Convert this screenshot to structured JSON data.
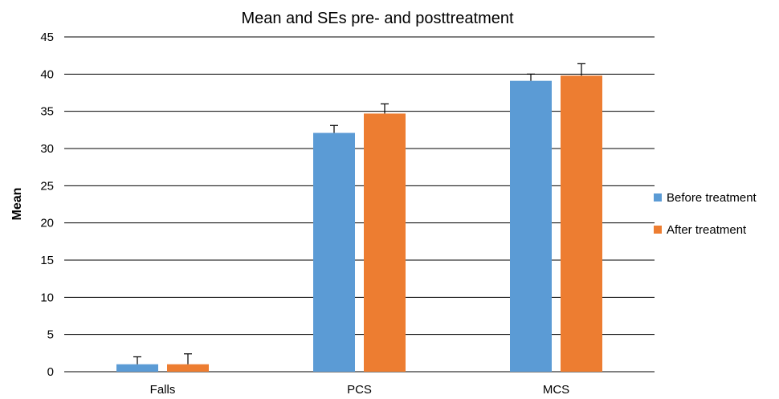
{
  "chart_data": {
    "type": "bar",
    "title": "Mean and SEs pre- and posttreatment",
    "xlabel": "",
    "ylabel": "Mean",
    "ylim": [
      0,
      45
    ],
    "yticks": [
      0,
      5,
      10,
      15,
      20,
      25,
      30,
      35,
      40,
      45
    ],
    "grid": true,
    "legend_position": "right",
    "categories": [
      "Falls",
      "PCS",
      "MCS"
    ],
    "series": [
      {
        "name": "Before treatment",
        "color": "#5B9BD5",
        "values": [
          1.0,
          32.1,
          39.1
        ],
        "se": [
          1.0,
          1.0,
          0.9
        ]
      },
      {
        "name": "After treatment",
        "color": "#ED7D31",
        "values": [
          1.0,
          34.7,
          39.8
        ],
        "se": [
          1.4,
          1.3,
          1.6
        ]
      }
    ]
  }
}
